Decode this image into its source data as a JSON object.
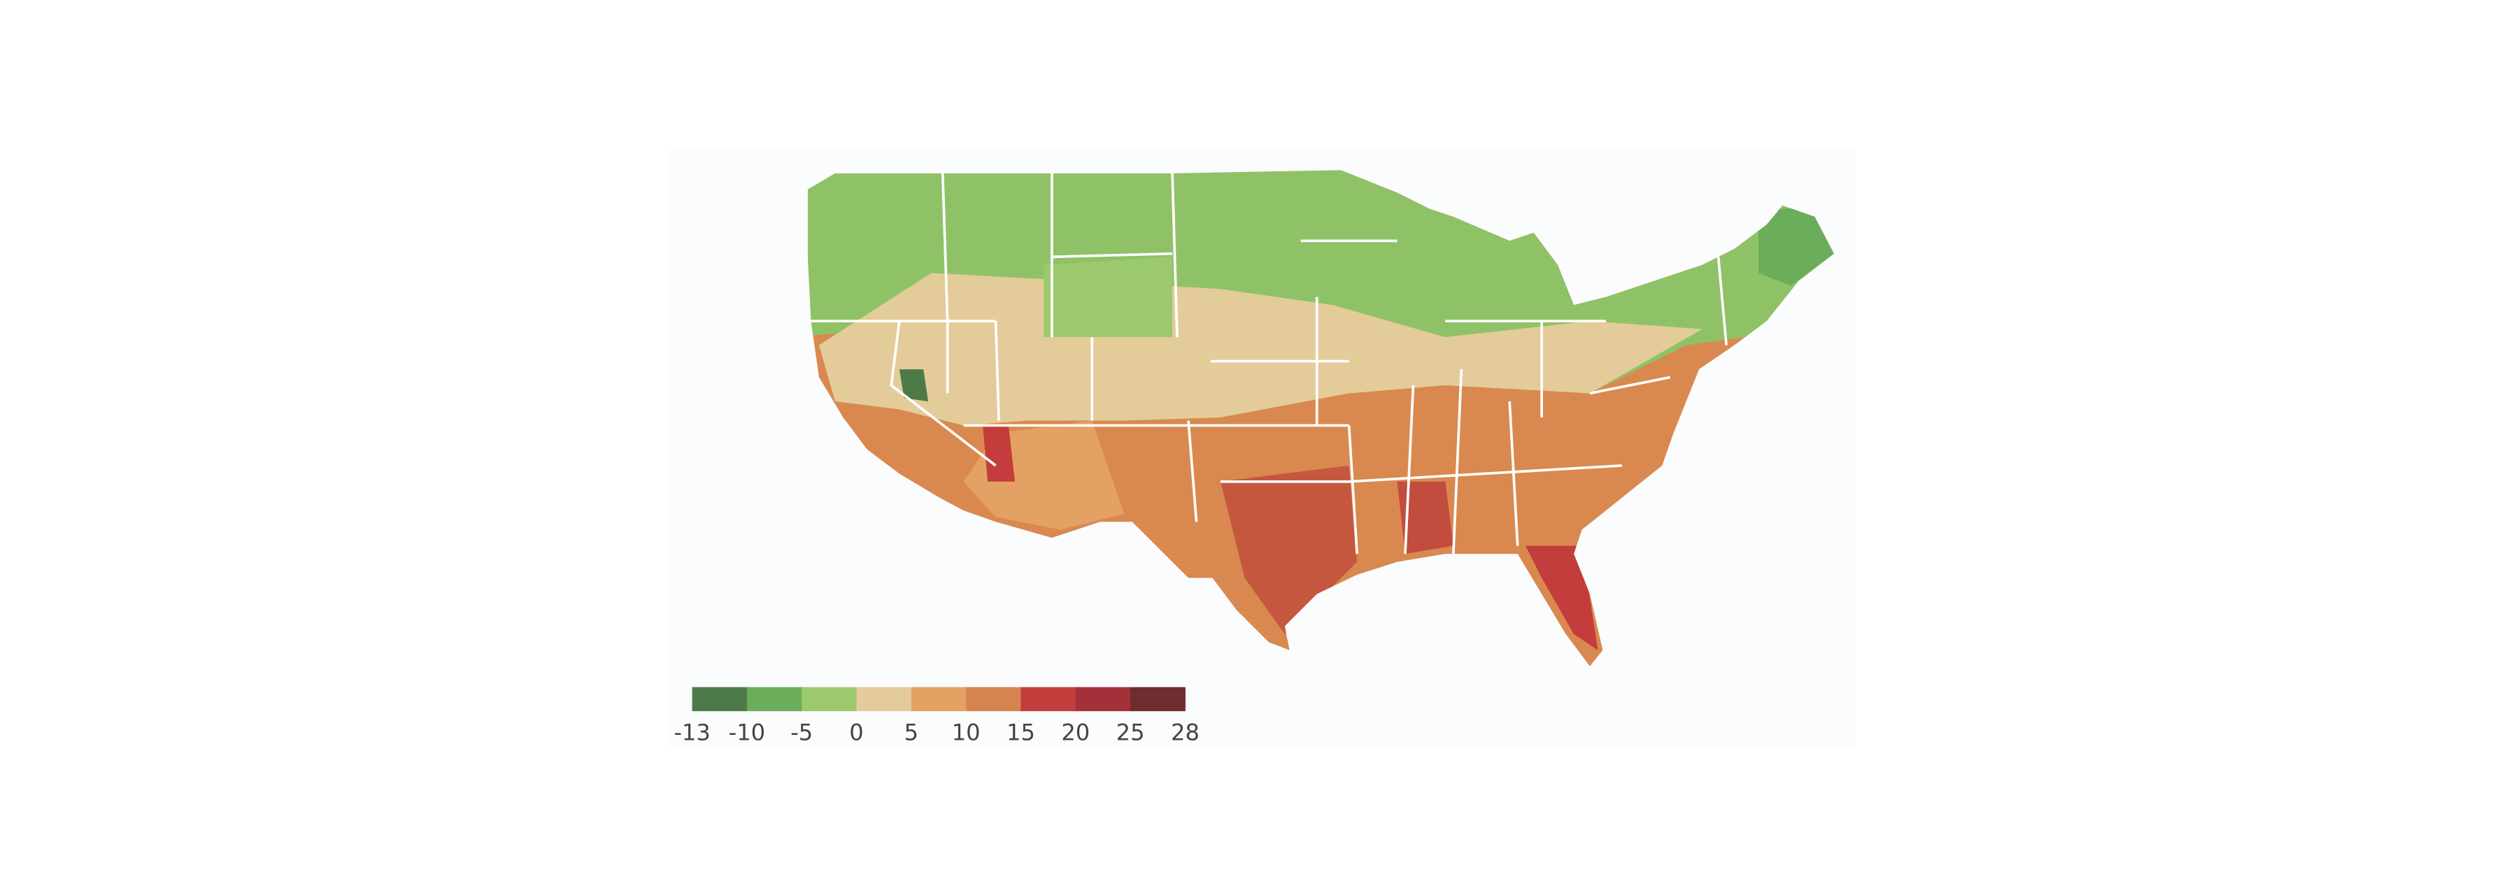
{
  "legend": {
    "ticks": [
      -13,
      -10,
      -5,
      0,
      5,
      10,
      15,
      20,
      25,
      28
    ],
    "colors": [
      "#4e7a49",
      "#6aad5b",
      "#9cc96d",
      "#e3cc99",
      "#e4a164",
      "#d6844f",
      "#c23d3c",
      "#a2313a",
      "#6e2d2e"
    ]
  }
}
